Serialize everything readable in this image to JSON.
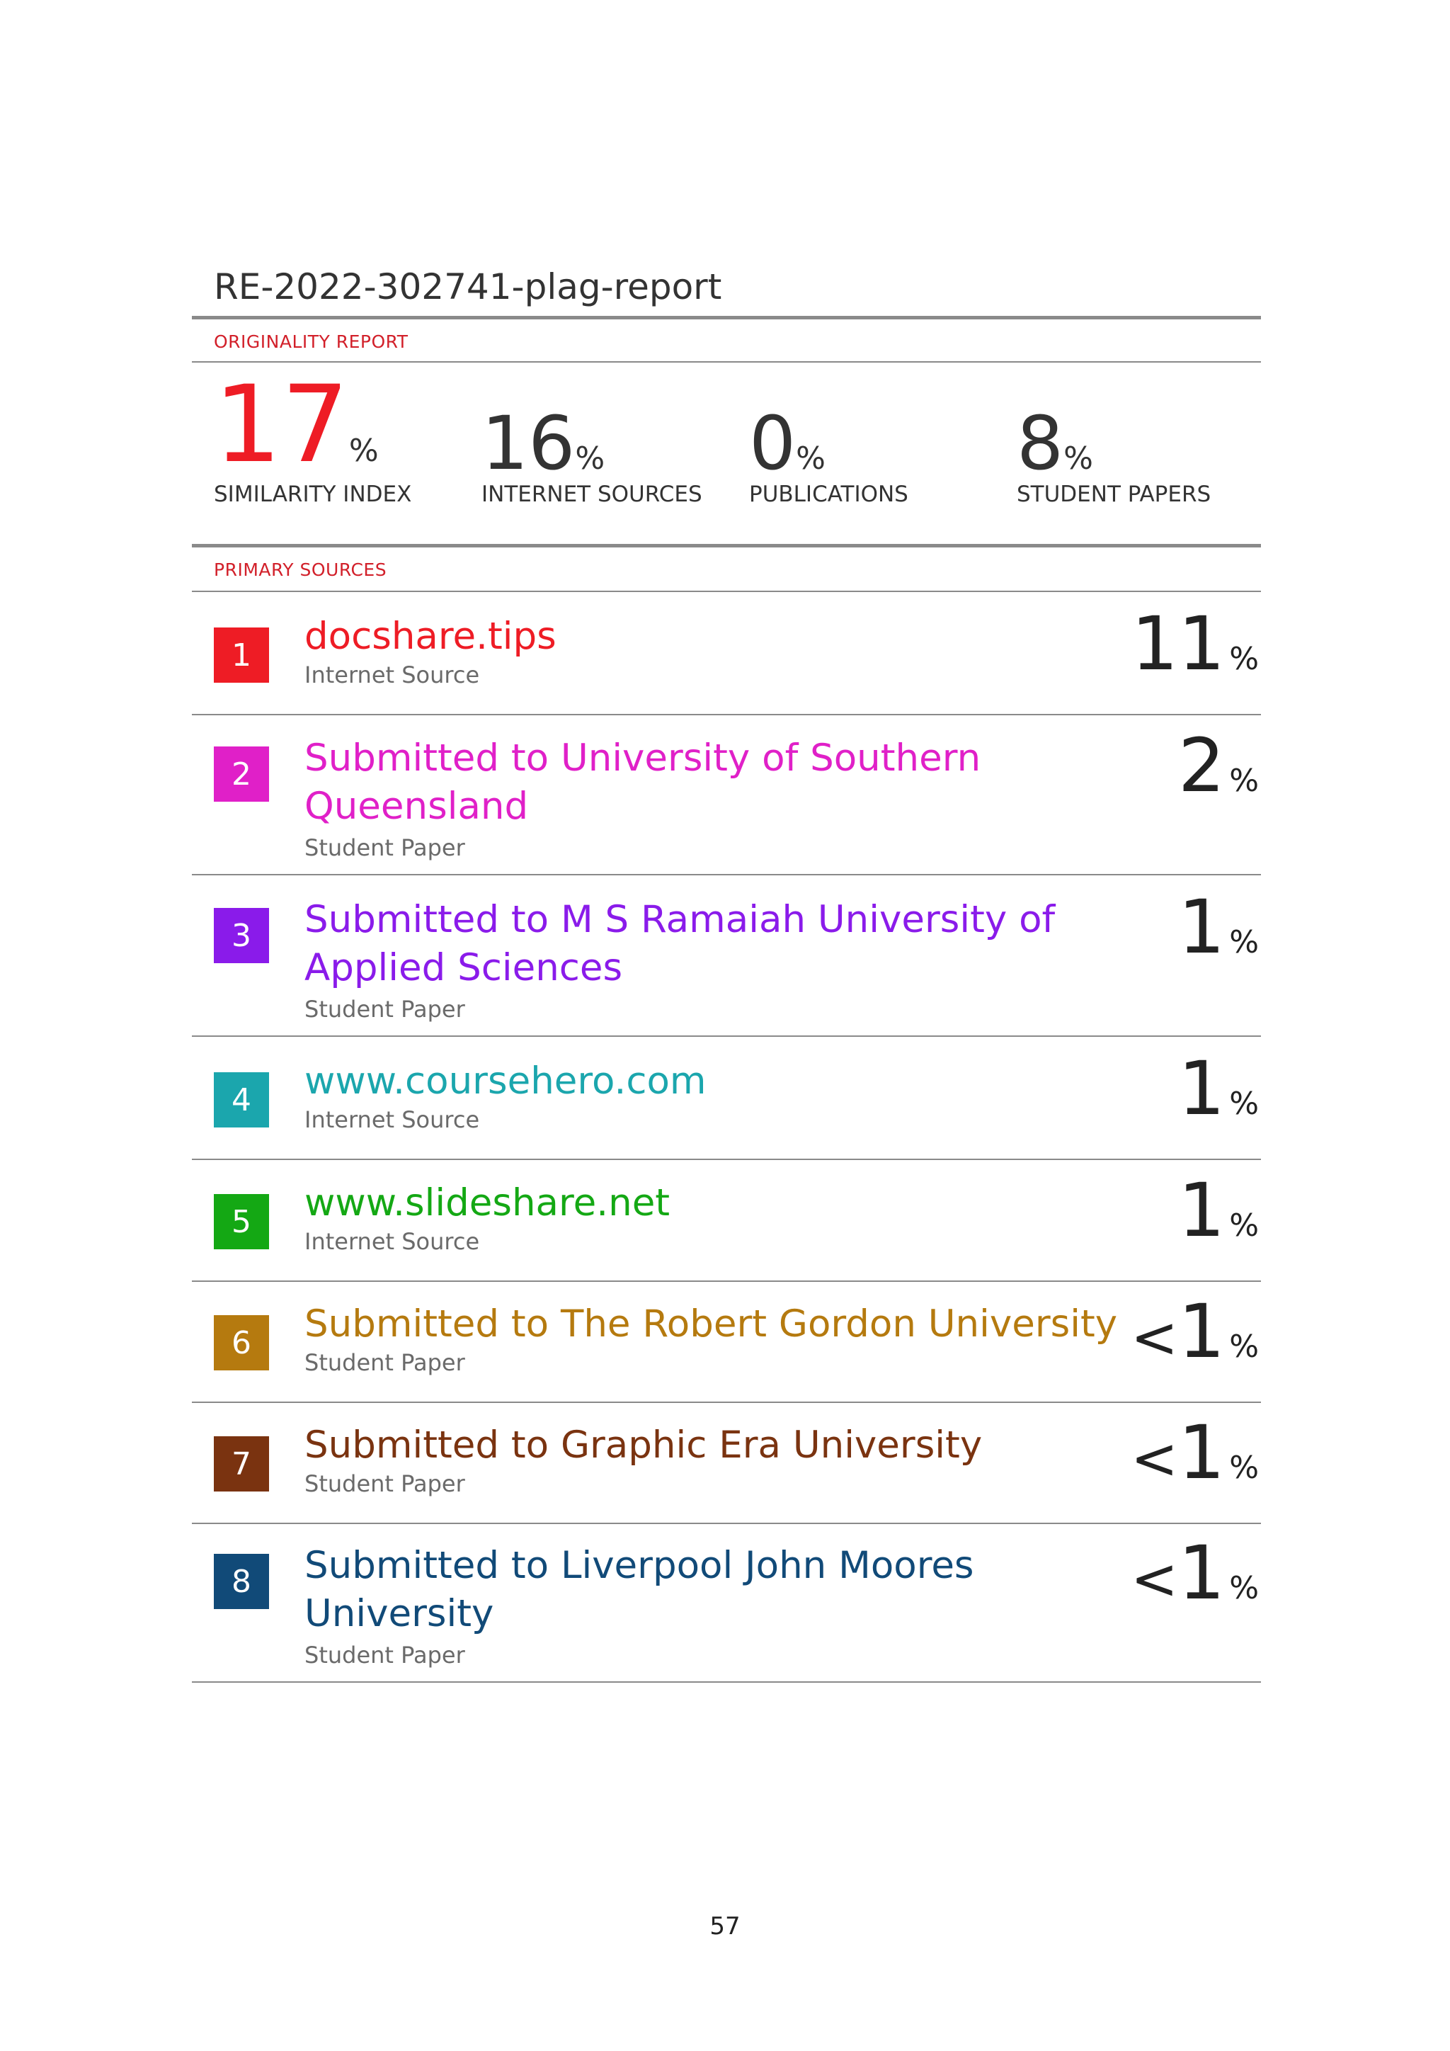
{
  "document": {
    "title": "RE-2022-302741-plag-report",
    "page_number": "57"
  },
  "originality": {
    "section_label": "ORIGINALITY REPORT",
    "stats": [
      {
        "value": "17",
        "unit": "%",
        "label": "SIMILARITY INDEX"
      },
      {
        "value": "16",
        "unit": "%",
        "label": "INTERNET SOURCES"
      },
      {
        "value": "0",
        "unit": "%",
        "label": "PUBLICATIONS"
      },
      {
        "value": "8",
        "unit": "%",
        "label": "STUDENT PAPERS"
      }
    ]
  },
  "primary_sources": {
    "section_label": "PRIMARY SOURCES",
    "items": [
      {
        "rank": "1",
        "title_line1": "docshare.tips",
        "title_line2": "",
        "type": "Internet Source",
        "prefix": "",
        "percent": "11",
        "unit": "%",
        "color": "#ee1c25"
      },
      {
        "rank": "2",
        "title_line1": "Submitted to University of Southern",
        "title_line2": "Queensland",
        "type": "Student Paper",
        "prefix": "",
        "percent": "2",
        "unit": "%",
        "color": "#e020c8"
      },
      {
        "rank": "3",
        "title_line1": "Submitted to M S Ramaiah University of",
        "title_line2": "Applied Sciences",
        "type": "Student Paper",
        "prefix": "",
        "percent": "1",
        "unit": "%",
        "color": "#8a1bea"
      },
      {
        "rank": "4",
        "title_line1": "www.coursehero.com",
        "title_line2": "",
        "type": "Internet Source",
        "prefix": "",
        "percent": "1",
        "unit": "%",
        "color": "#1ba6ad"
      },
      {
        "rank": "5",
        "title_line1": "www.slideshare.net",
        "title_line2": "",
        "type": "Internet Source",
        "prefix": "",
        "percent": "1",
        "unit": "%",
        "color": "#14a814"
      },
      {
        "rank": "6",
        "title_line1": "Submitted to The Robert Gordon University",
        "title_line2": "",
        "type": "Student Paper",
        "prefix": "<",
        "percent": "1",
        "unit": "%",
        "color": "#b57a0f"
      },
      {
        "rank": "7",
        "title_line1": "Submitted to Graphic Era University",
        "title_line2": "",
        "type": "Student Paper",
        "prefix": "<",
        "percent": "1",
        "unit": "%",
        "color": "#7a3310"
      },
      {
        "rank": "8",
        "title_line1": "Submitted to Liverpool John Moores",
        "title_line2": "University",
        "type": "Student Paper",
        "prefix": "<",
        "percent": "1",
        "unit": "%",
        "color": "#114a78"
      }
    ]
  }
}
